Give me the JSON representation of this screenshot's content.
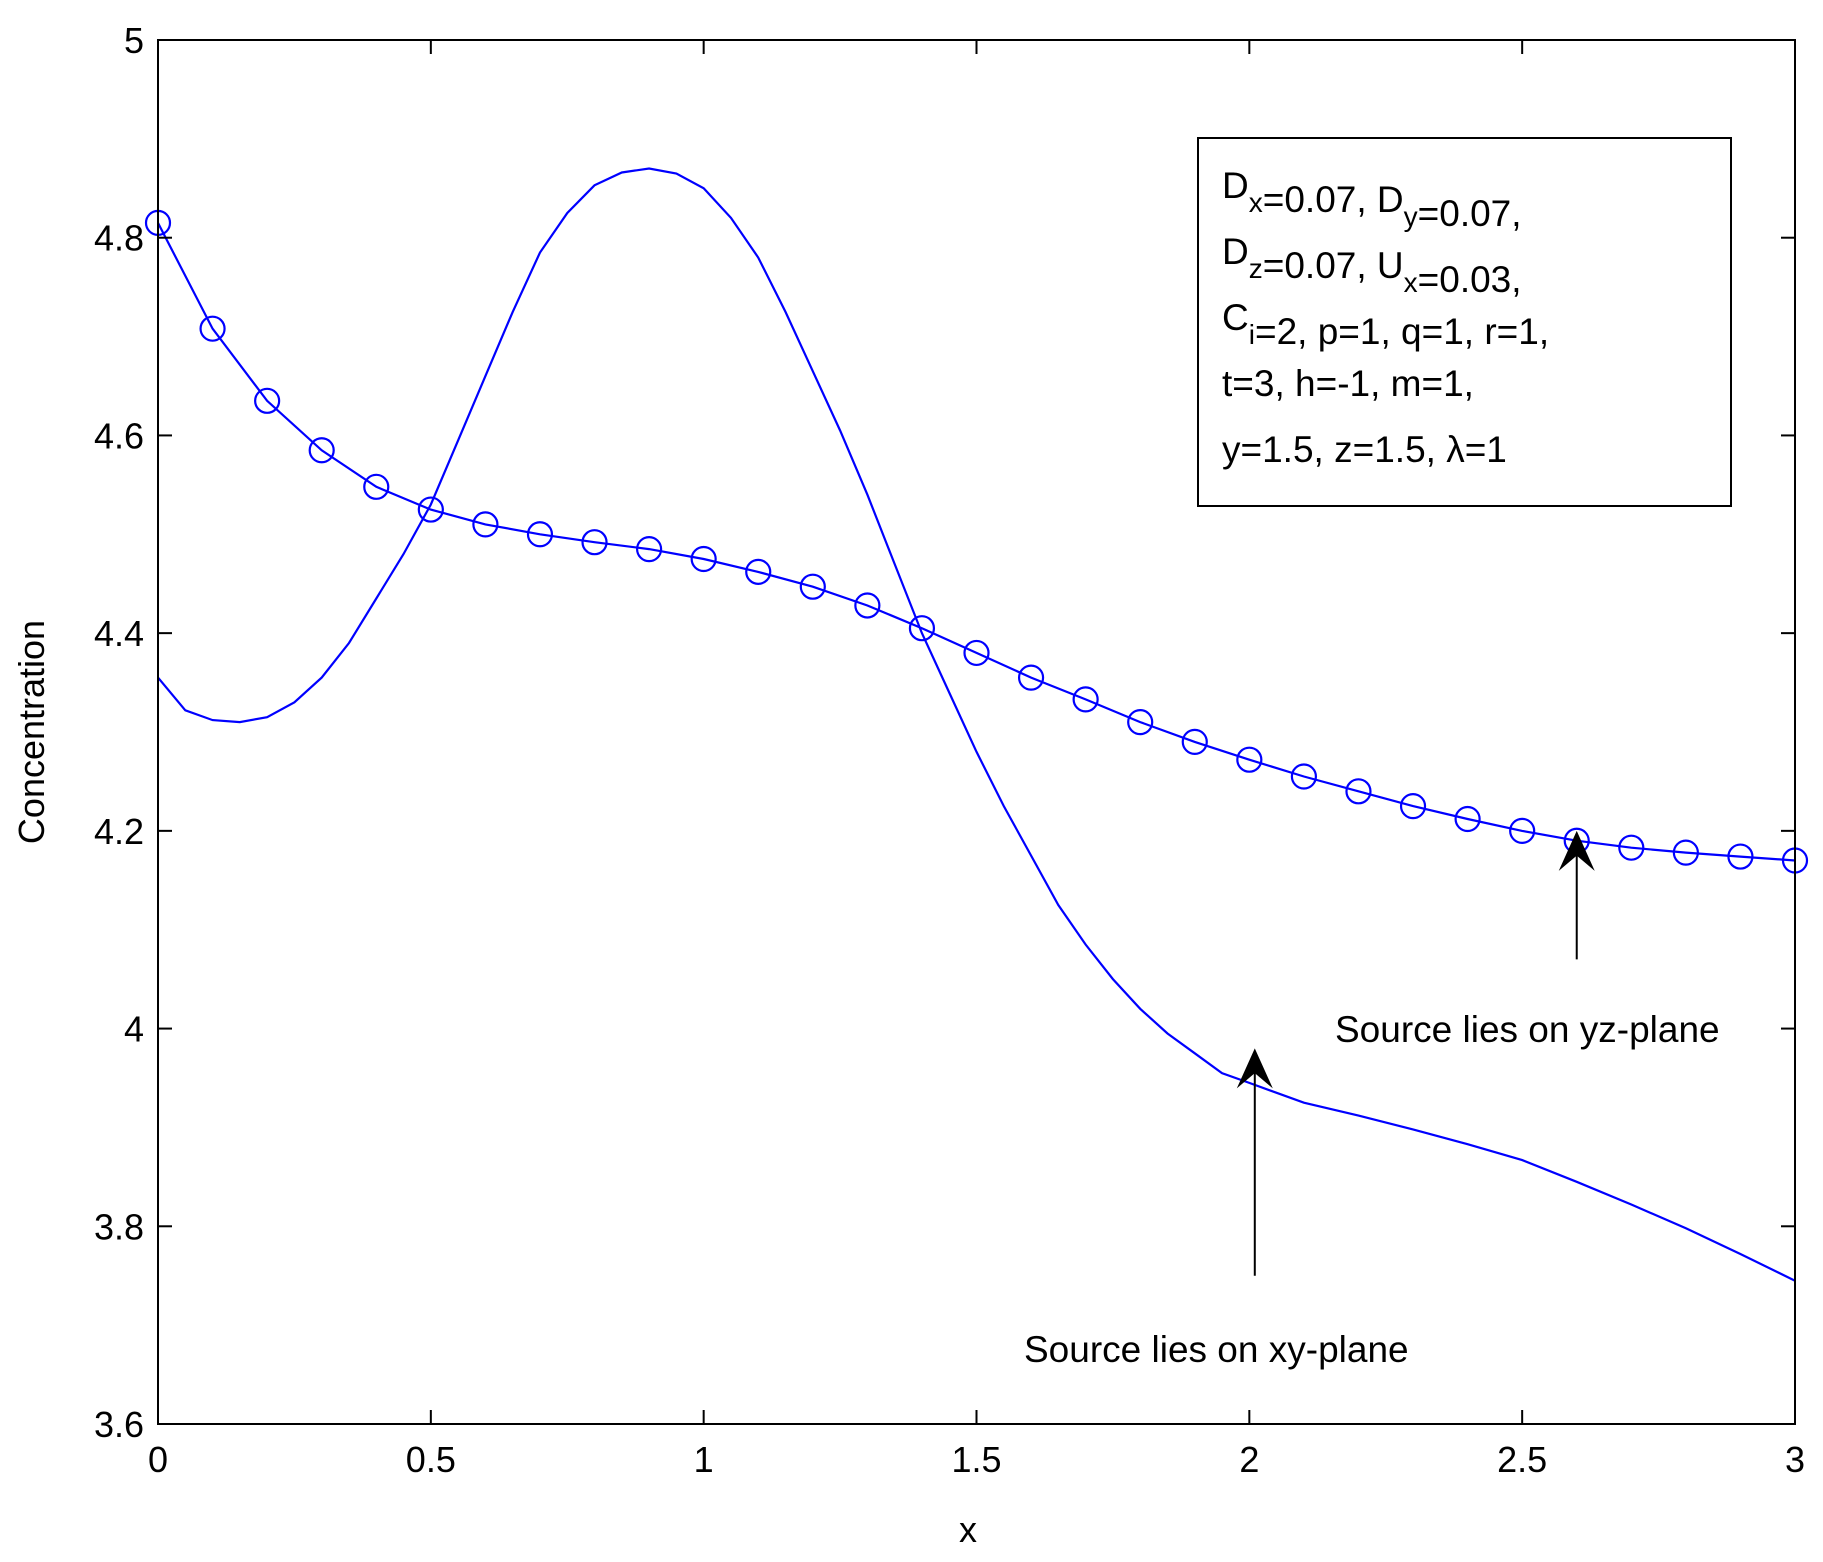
{
  "chart_data": {
    "type": "line",
    "xlabel": "x",
    "ylabel": "Concentration",
    "xlim": [
      0,
      3
    ],
    "ylim": [
      3.6,
      5
    ],
    "xticks": [
      0,
      0.5,
      1,
      1.5,
      2,
      2.5,
      3
    ],
    "xtick_labels": [
      "0",
      "0.5",
      "1",
      "1.5",
      "2",
      "2.5",
      "3"
    ],
    "yticks": [
      3.6,
      3.8,
      4,
      4.2,
      4.4,
      4.6,
      4.8,
      5
    ],
    "ytick_labels": [
      "3.6",
      "3.8",
      "4",
      "4.2",
      "4.4",
      "4.6",
      "4.8",
      "5"
    ],
    "grid": false,
    "line_color": "#0000ff",
    "series": [
      {
        "marker": "none",
        "x": [
          0,
          0.05,
          0.1,
          0.15,
          0.2,
          0.25,
          0.3,
          0.35,
          0.4,
          0.45,
          0.5,
          0.55,
          0.6,
          0.65,
          0.7,
          0.75,
          0.8,
          0.85,
          0.9,
          0.95,
          1.0,
          1.05,
          1.1,
          1.15,
          1.2,
          1.25,
          1.3,
          1.35,
          1.4,
          1.45,
          1.5,
          1.55,
          1.6,
          1.65,
          1.7,
          1.75,
          1.8,
          1.85,
          1.9,
          1.95,
          2.0,
          2.05,
          2.1,
          2.2,
          2.3,
          2.4,
          2.5,
          2.6,
          2.7,
          2.8,
          2.9,
          3.0
        ],
        "values": [
          4.355,
          4.322,
          4.312,
          4.31,
          4.315,
          4.33,
          4.355,
          4.39,
          4.435,
          4.48,
          4.53,
          4.595,
          4.66,
          4.725,
          4.785,
          4.825,
          4.853,
          4.866,
          4.87,
          4.865,
          4.85,
          4.82,
          4.78,
          4.725,
          4.665,
          4.605,
          4.54,
          4.47,
          4.4,
          4.34,
          4.28,
          4.225,
          4.175,
          4.125,
          4.085,
          4.05,
          4.02,
          3.995,
          3.975,
          3.955,
          3.945,
          3.935,
          3.925,
          3.912,
          3.898,
          3.883,
          3.867,
          3.845,
          3.822,
          3.798,
          3.772,
          3.745
        ]
      },
      {
        "marker": "circle",
        "x": [
          0,
          0.1,
          0.2,
          0.3,
          0.4,
          0.5,
          0.6,
          0.7,
          0.8,
          0.9,
          1.0,
          1.1,
          1.2,
          1.3,
          1.4,
          1.5,
          1.6,
          1.7,
          1.8,
          1.9,
          2.0,
          2.1,
          2.2,
          2.3,
          2.4,
          2.5,
          2.6,
          2.7,
          2.8,
          2.9,
          3.0
        ],
        "values": [
          4.815,
          4.708,
          4.635,
          4.585,
          4.548,
          4.525,
          4.51,
          4.5,
          4.492,
          4.485,
          4.475,
          4.462,
          4.447,
          4.428,
          4.405,
          4.38,
          4.355,
          4.333,
          4.31,
          4.29,
          4.272,
          4.255,
          4.24,
          4.225,
          4.212,
          4.2,
          4.19,
          4.183,
          4.178,
          4.174,
          4.17
        ]
      }
    ],
    "legend_box": {
      "lines": [
        [
          [
            "D",
            ""
          ],
          [
            "x",
            "sub"
          ],
          [
            "=0.07, D",
            ""
          ],
          [
            "y",
            "sub"
          ],
          [
            "=0.07,",
            ""
          ]
        ],
        [
          [
            "D",
            ""
          ],
          [
            "z",
            "sub"
          ],
          [
            "=0.07, U",
            ""
          ],
          [
            "x",
            "sub"
          ],
          [
            "=0.03,",
            ""
          ]
        ],
        [
          [
            "C",
            ""
          ],
          [
            "i",
            "sub"
          ],
          [
            "=2, p=1, q=1, r=1,",
            ""
          ]
        ],
        [
          [
            " t=3, h=-1, m=1,",
            ""
          ]
        ],
        [
          [
            "y=1.5,  z=1.5, λ=1",
            ""
          ]
        ]
      ],
      "placement": "top-right"
    },
    "annotations": [
      {
        "text": "Source lies on yz-plane",
        "arrow_to": [
          2.6,
          4.2
        ],
        "arrow_from": [
          2.6,
          4.07
        ]
      },
      {
        "text": "Source lies on xy-plane",
        "arrow_to": [
          2.01,
          3.98
        ],
        "arrow_from": [
          2.01,
          3.75
        ]
      }
    ]
  }
}
